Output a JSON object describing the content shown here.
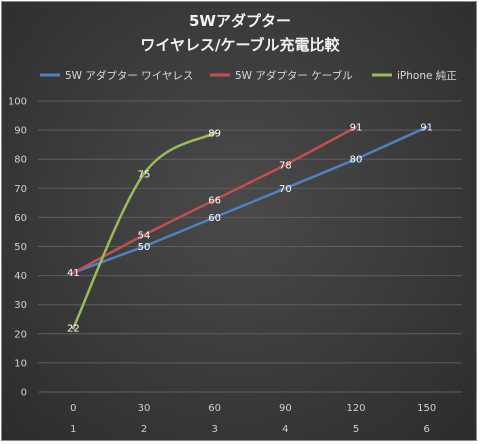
{
  "chart_data": {
    "type": "line",
    "title_line1": "5Wアダプター",
    "title_line2": "ワイヤレス/ケーブル充電比較",
    "categories": [
      "1",
      "2",
      "3",
      "4",
      "5",
      "6"
    ],
    "x_values": [
      "0",
      "30",
      "60",
      "90",
      "120",
      "150"
    ],
    "ylim": [
      0,
      100
    ],
    "yticks": [
      0,
      10,
      20,
      30,
      40,
      50,
      60,
      70,
      80,
      90,
      100
    ],
    "grid": true,
    "legend_position": "top",
    "series": [
      {
        "name": "5W アダプター ワイヤレス",
        "color": "#4f81bd",
        "smooth": false,
        "values": [
          41,
          50,
          60,
          70,
          80,
          91
        ]
      },
      {
        "name": "5W アダプター ケーブル",
        "color": "#c0504d",
        "smooth": false,
        "values": [
          41,
          54,
          66,
          78,
          91,
          null
        ]
      },
      {
        "name": "iPhone 純正",
        "color": "#9bbb59",
        "smooth": true,
        "values": [
          22,
          75,
          89,
          null,
          null,
          null
        ]
      }
    ]
  }
}
